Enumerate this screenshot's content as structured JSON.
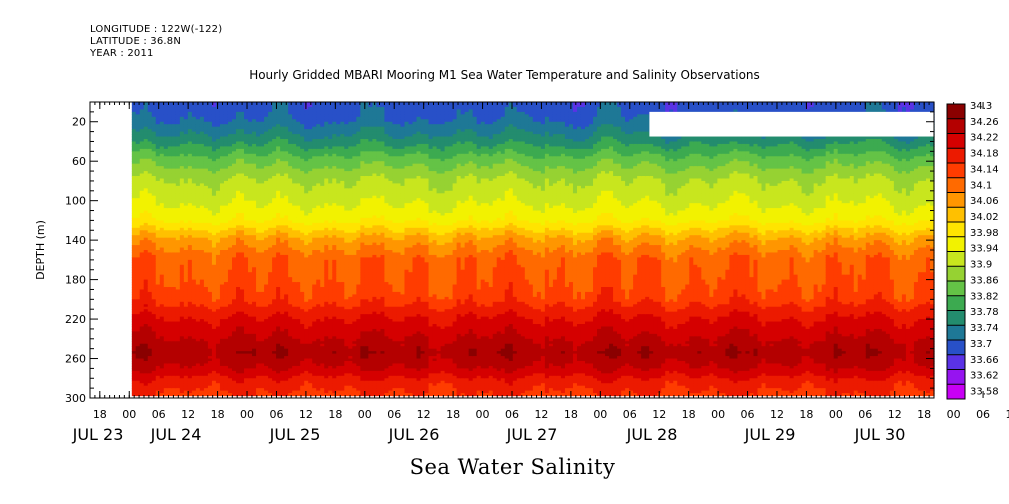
{
  "header": {
    "longitude": "LONGITUDE : 122W(-122)",
    "latitude": "LATITUDE : 36.8N",
    "year": "YEAR : 2011"
  },
  "chart_data": {
    "type": "heatmap",
    "title": "Hourly Gridded MBARI Mooring M1 Sea Water Temperature and Salinity Observations",
    "xlabel": "Sea Water Salinity",
    "ylabel": "DEPTH (m)",
    "x_range": [
      "2011-07-23T16:00",
      "2011-07-30T20:00"
    ],
    "y_range": [
      300,
      0
    ],
    "y_ticks": [
      20,
      60,
      100,
      140,
      180,
      220,
      260,
      300
    ],
    "hour_ticks": [
      "18",
      "00",
      "06",
      "12",
      "18",
      "00",
      "06",
      "12",
      "18",
      "00",
      "06",
      "12",
      "18",
      "00",
      "06",
      "12",
      "18",
      "00",
      "06",
      "12",
      "18",
      "00",
      "06",
      "12",
      "18",
      "00",
      "06",
      "12",
      "18",
      "00",
      "06",
      "12",
      "18"
    ],
    "day_labels": [
      "JUL 23",
      "JUL 24",
      "JUL 25",
      "JUL 26",
      "JUL 27",
      "JUL 28",
      "JUL 29",
      "JUL 30"
    ],
    "data_start": "2011-07-24T00:30",
    "colorbar": {
      "levels": [
        "34.3",
        "34.26",
        "34.22",
        "34.18",
        "34.14",
        "34.1",
        "34.06",
        "34.02",
        "33.98",
        "33.94",
        "33.9",
        "33.86",
        "33.82",
        "33.78",
        "33.74",
        "33.7",
        "33.66",
        "33.62",
        "33.58"
      ],
      "colors": [
        "#8a0000",
        "#b40000",
        "#d50000",
        "#ec1a00",
        "#ff3c00",
        "#ff6a00",
        "#ff9600",
        "#ffc000",
        "#ffe400",
        "#f2f200",
        "#c8e61e",
        "#96d232",
        "#64c346",
        "#3caa50",
        "#238c6e",
        "#1e7896",
        "#2850c8",
        "#5a32e6",
        "#9614f0",
        "#c800f5"
      ]
    },
    "profile": [
      {
        "depth": 5,
        "value": 33.68
      },
      {
        "depth": 20,
        "value": 33.7
      },
      {
        "depth": 40,
        "value": 33.76
      },
      {
        "depth": 60,
        "value": 33.84
      },
      {
        "depth": 80,
        "value": 33.9
      },
      {
        "depth": 100,
        "value": 33.93
      },
      {
        "depth": 120,
        "value": 33.97
      },
      {
        "depth": 140,
        "value": 34.07
      },
      {
        "depth": 160,
        "value": 34.13
      },
      {
        "depth": 180,
        "value": 34.14
      },
      {
        "depth": 200,
        "value": 34.16
      },
      {
        "depth": 220,
        "value": 34.22
      },
      {
        "depth": 240,
        "value": 34.26
      },
      {
        "depth": 255,
        "value": 34.29
      },
      {
        "depth": 270,
        "value": 34.26
      },
      {
        "depth": 285,
        "value": 34.2
      },
      {
        "depth": 300,
        "value": 34.17
      }
    ],
    "missing_region": {
      "start": "2011-07-28T10:00",
      "end": "2011-07-30T20:00",
      "depth_top": 10,
      "depth_bottom": 35
    }
  }
}
